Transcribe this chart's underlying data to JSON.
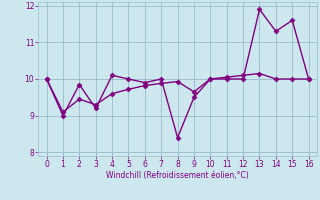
{
  "line1_x": [
    0,
    1,
    2,
    3,
    4,
    5,
    6,
    7,
    8,
    9,
    10,
    11,
    12,
    13,
    14,
    15,
    16
  ],
  "line1_y": [
    10.0,
    9.0,
    9.85,
    9.2,
    10.1,
    10.0,
    9.9,
    10.0,
    8.4,
    9.5,
    10.0,
    10.0,
    10.0,
    11.9,
    11.3,
    11.6,
    10.0
  ],
  "line2_x": [
    0,
    1,
    2,
    3,
    4,
    5,
    6,
    7,
    8,
    9,
    10,
    11,
    12,
    13,
    14,
    15,
    16
  ],
  "line2_y": [
    10.0,
    9.1,
    9.45,
    9.3,
    9.6,
    9.72,
    9.82,
    9.88,
    9.93,
    9.65,
    10.0,
    10.05,
    10.1,
    10.15,
    10.0,
    10.0,
    10.0
  ],
  "line_color": "#800080",
  "bg_color": "#cce8ee",
  "grid_color": "#99bbcc",
  "xlabel": "Windchill (Refroidissement éolien,°C)",
  "xlim": [
    -0.5,
    16.5
  ],
  "ylim": [
    7.9,
    12.1
  ],
  "yticks": [
    8,
    9,
    10,
    11,
    12
  ],
  "xticks": [
    0,
    1,
    2,
    3,
    4,
    5,
    6,
    7,
    8,
    9,
    10,
    11,
    12,
    13,
    14,
    15,
    16
  ],
  "marker": "D",
  "markersize": 2.5,
  "linewidth": 1.0
}
